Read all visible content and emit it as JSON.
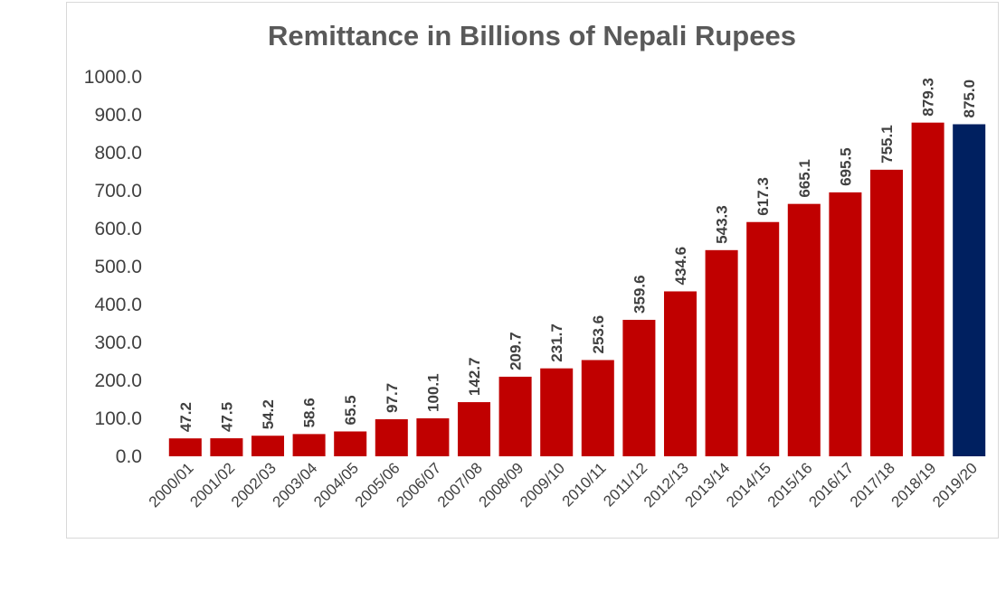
{
  "chart_data": {
    "type": "bar",
    "title": "Remittance in Billions of Nepali Rupees",
    "xlabel": "",
    "ylabel": "",
    "ylim": [
      0,
      1000
    ],
    "yticks": [
      "0.0",
      "100.0",
      "200.0",
      "300.0",
      "400.0",
      "500.0",
      "600.0",
      "700.0",
      "800.0",
      "900.0",
      "1000.0"
    ],
    "categories": [
      "2000/01",
      "2001/02",
      "2002/03",
      "2003/04",
      "2004/05",
      "2005/06",
      "2006/07",
      "2007/08",
      "2008/09",
      "2009/10",
      "2010/11",
      "2011/12",
      "2012/13",
      "2013/14",
      "2014/15",
      "2015/16",
      "2016/17",
      "2017/18",
      "2018/19",
      "2019/20"
    ],
    "values": [
      47.2,
      47.5,
      54.2,
      58.6,
      65.5,
      97.7,
      100.1,
      142.7,
      209.7,
      231.7,
      253.6,
      359.6,
      434.6,
      543.3,
      617.3,
      665.1,
      695.5,
      755.1,
      879.3,
      875.0
    ],
    "value_labels": [
      "47.2",
      "47.5",
      "54.2",
      "58.6",
      "65.5",
      "97.7",
      "100.1",
      "142.7",
      "209.7",
      "231.7",
      "253.6",
      "359.6",
      "434.6",
      "543.3",
      "617.3",
      "665.1",
      "695.5",
      "755.1",
      "879.3",
      "875.0"
    ],
    "colors": {
      "bar": "#c00000",
      "highlight": "#002060"
    },
    "highlight_index": 19,
    "grid": false,
    "legend": "none"
  }
}
